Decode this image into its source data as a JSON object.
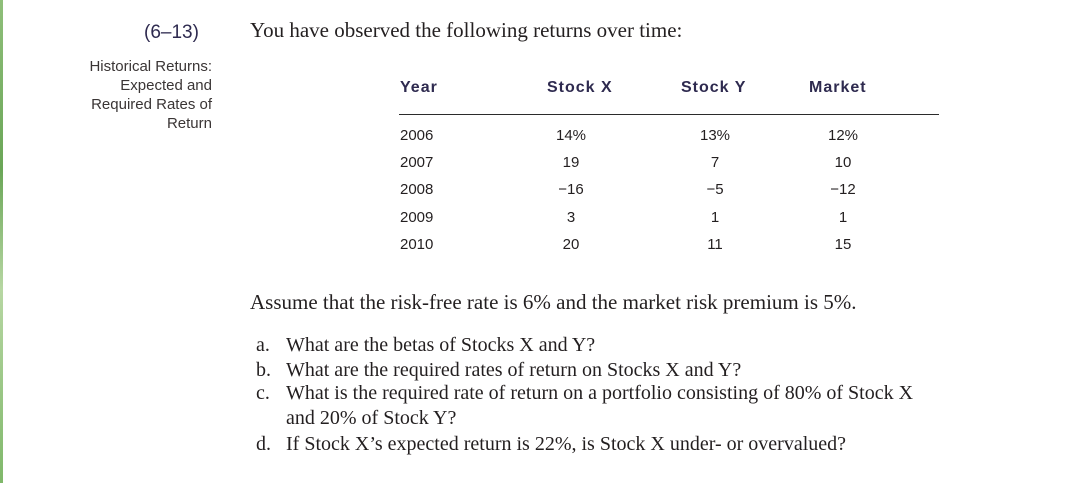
{
  "problem": {
    "number": "(6–13)",
    "topic_lines": [
      "Historical Returns:",
      "Expected and",
      "Required Rates of",
      "Return"
    ],
    "intro": "You have observed the following returns over time:"
  },
  "table": {
    "headers": [
      "Year",
      "Stock X",
      "Stock Y",
      "Market"
    ],
    "rows": [
      [
        "2006",
        "14%",
        "13%",
        "12%"
      ],
      [
        "2007",
        "19",
        "7",
        "10"
      ],
      [
        "2008",
        "−16",
        "−5",
        "−12"
      ],
      [
        "2009",
        "3",
        "1",
        "1"
      ],
      [
        "2010",
        "20",
        "11",
        "15"
      ]
    ]
  },
  "assumption": "Assume that the risk-free rate is 6% and the market risk premium is 5%.",
  "questions": [
    {
      "letter": "a.",
      "text": "What are the betas of Stocks X and Y?"
    },
    {
      "letter": "b.",
      "text": "What are the required rates of return on Stocks X and Y?"
    },
    {
      "letter": "c.",
      "text": "What is the required rate of return on a portfolio consisting of 80% of Stock X",
      "cont": "and 20% of Stock Y?"
    },
    {
      "letter": "d.",
      "text": "If Stock X’s expected return is 22%, is Stock X under- or overvalued?"
    }
  ]
}
